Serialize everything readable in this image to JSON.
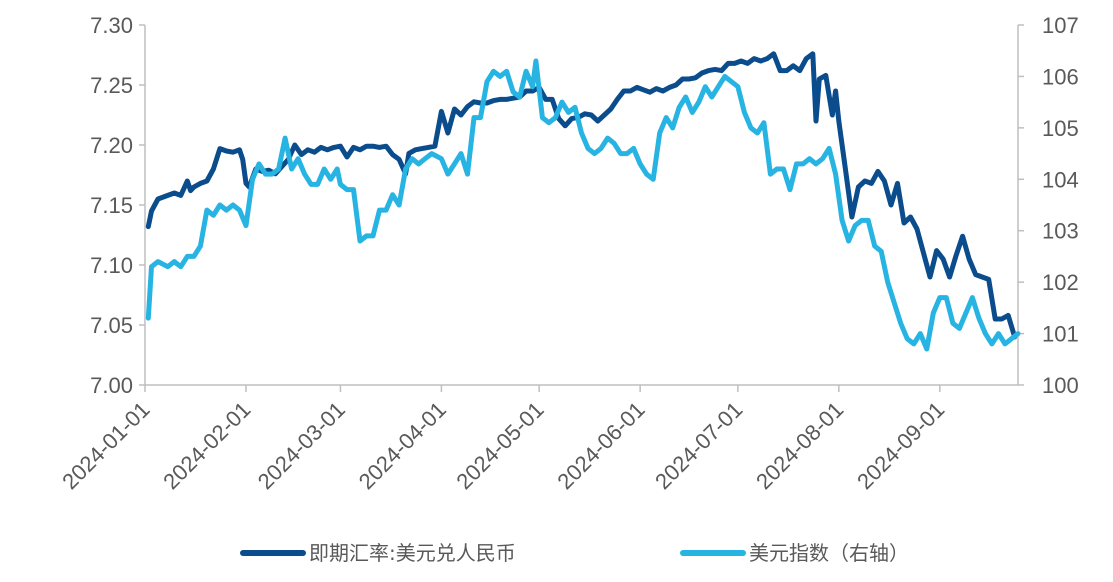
{
  "chart_data": {
    "type": "line",
    "title": "",
    "xlabel": "",
    "ylabel": "",
    "x_ticks": [
      "2024-01-01",
      "2024-02-01",
      "2024-03-01",
      "2024-04-01",
      "2024-05-01",
      "2024-06-01",
      "2024-07-01",
      "2024-08-01",
      "2024-09-01"
    ],
    "x_range": [
      "2024-01-01",
      "2024-09-25"
    ],
    "y_left": {
      "ylim": [
        7.0,
        7.3
      ],
      "ticks": [
        "7.00",
        "7.05",
        "7.10",
        "7.15",
        "7.20",
        "7.25",
        "7.30"
      ]
    },
    "y_right": {
      "ylim": [
        100,
        107
      ],
      "ticks": [
        "100",
        "101",
        "102",
        "103",
        "104",
        "105",
        "106",
        "107"
      ]
    },
    "grid": false,
    "legend_position": "bottom",
    "series": [
      {
        "name": "即期汇率:美元兑人民币",
        "axis": "left",
        "color": "#0B4C8C",
        "points": [
          [
            "2024-01-02",
            7.132
          ],
          [
            "2024-01-03",
            7.145
          ],
          [
            "2024-01-05",
            7.155
          ],
          [
            "2024-01-08",
            7.158
          ],
          [
            "2024-01-10",
            7.16
          ],
          [
            "2024-01-12",
            7.158
          ],
          [
            "2024-01-14",
            7.17
          ],
          [
            "2024-01-15",
            7.162
          ],
          [
            "2024-01-16",
            7.165
          ],
          [
            "2024-01-18",
            7.168
          ],
          [
            "2024-01-20",
            7.17
          ],
          [
            "2024-01-22",
            7.18
          ],
          [
            "2024-01-24",
            7.197
          ],
          [
            "2024-01-26",
            7.195
          ],
          [
            "2024-01-28",
            7.194
          ],
          [
            "2024-01-30",
            7.196
          ],
          [
            "2024-01-31",
            7.188
          ],
          [
            "2024-02-01",
            7.168
          ],
          [
            "2024-02-02",
            7.165
          ],
          [
            "2024-02-04",
            7.18
          ],
          [
            "2024-02-06",
            7.178
          ],
          [
            "2024-02-08",
            7.179
          ],
          [
            "2024-02-10",
            7.176
          ],
          [
            "2024-02-12",
            7.182
          ],
          [
            "2024-02-14",
            7.188
          ],
          [
            "2024-02-16",
            7.2
          ],
          [
            "2024-02-18",
            7.192
          ],
          [
            "2024-02-20",
            7.196
          ],
          [
            "2024-02-22",
            7.194
          ],
          [
            "2024-02-24",
            7.198
          ],
          [
            "2024-02-26",
            7.196
          ],
          [
            "2024-02-28",
            7.198
          ],
          [
            "2024-03-01",
            7.199
          ],
          [
            "2024-03-03",
            7.19
          ],
          [
            "2024-03-05",
            7.198
          ],
          [
            "2024-03-07",
            7.196
          ],
          [
            "2024-03-09",
            7.199
          ],
          [
            "2024-03-11",
            7.199
          ],
          [
            "2024-03-13",
            7.198
          ],
          [
            "2024-03-15",
            7.199
          ],
          [
            "2024-03-17",
            7.192
          ],
          [
            "2024-03-19",
            7.188
          ],
          [
            "2024-03-21",
            7.176
          ],
          [
            "2024-03-22",
            7.193
          ],
          [
            "2024-03-24",
            7.196
          ],
          [
            "2024-03-26",
            7.197
          ],
          [
            "2024-03-28",
            7.198
          ],
          [
            "2024-03-30",
            7.199
          ],
          [
            "2024-04-01",
            7.228
          ],
          [
            "2024-04-03",
            7.21
          ],
          [
            "2024-04-05",
            7.23
          ],
          [
            "2024-04-07",
            7.225
          ],
          [
            "2024-04-09",
            7.232
          ],
          [
            "2024-04-11",
            7.236
          ],
          [
            "2024-04-13",
            7.235
          ],
          [
            "2024-04-15",
            7.235
          ],
          [
            "2024-04-17",
            7.237
          ],
          [
            "2024-04-19",
            7.238
          ],
          [
            "2024-04-21",
            7.238
          ],
          [
            "2024-04-23",
            7.239
          ],
          [
            "2024-04-25",
            7.24
          ],
          [
            "2024-04-27",
            7.245
          ],
          [
            "2024-04-29",
            7.245
          ],
          [
            "2024-05-01",
            7.248
          ],
          [
            "2024-05-03",
            7.238
          ],
          [
            "2024-05-05",
            7.238
          ],
          [
            "2024-05-07",
            7.222
          ],
          [
            "2024-05-09",
            7.216
          ],
          [
            "2024-05-11",
            7.222
          ],
          [
            "2024-05-13",
            7.223
          ],
          [
            "2024-05-15",
            7.226
          ],
          [
            "2024-05-17",
            7.225
          ],
          [
            "2024-05-19",
            7.22
          ],
          [
            "2024-05-21",
            7.225
          ],
          [
            "2024-05-23",
            7.23
          ],
          [
            "2024-05-25",
            7.238
          ],
          [
            "2024-05-27",
            7.245
          ],
          [
            "2024-05-29",
            7.245
          ],
          [
            "2024-05-31",
            7.248
          ],
          [
            "2024-06-02",
            7.246
          ],
          [
            "2024-06-04",
            7.244
          ],
          [
            "2024-06-06",
            7.247
          ],
          [
            "2024-06-08",
            7.245
          ],
          [
            "2024-06-10",
            7.248
          ],
          [
            "2024-06-12",
            7.25
          ],
          [
            "2024-06-14",
            7.255
          ],
          [
            "2024-06-16",
            7.255
          ],
          [
            "2024-06-18",
            7.256
          ],
          [
            "2024-06-20",
            7.26
          ],
          [
            "2024-06-22",
            7.262
          ],
          [
            "2024-06-24",
            7.263
          ],
          [
            "2024-06-26",
            7.262
          ],
          [
            "2024-06-28",
            7.268
          ],
          [
            "2024-06-30",
            7.268
          ],
          [
            "2024-07-02",
            7.27
          ],
          [
            "2024-07-04",
            7.268
          ],
          [
            "2024-07-06",
            7.272
          ],
          [
            "2024-07-08",
            7.27
          ],
          [
            "2024-07-10",
            7.272
          ],
          [
            "2024-07-12",
            7.276
          ],
          [
            "2024-07-14",
            7.262
          ],
          [
            "2024-07-16",
            7.262
          ],
          [
            "2024-07-18",
            7.266
          ],
          [
            "2024-07-20",
            7.262
          ],
          [
            "2024-07-22",
            7.272
          ],
          [
            "2024-07-24",
            7.276
          ],
          [
            "2024-07-25",
            7.22
          ],
          [
            "2024-07-26",
            7.255
          ],
          [
            "2024-07-28",
            7.258
          ],
          [
            "2024-07-30",
            7.225
          ],
          [
            "2024-07-31",
            7.245
          ],
          [
            "2024-08-01",
            7.22
          ],
          [
            "2024-08-03",
            7.18
          ],
          [
            "2024-08-05",
            7.14
          ],
          [
            "2024-08-07",
            7.165
          ],
          [
            "2024-08-09",
            7.17
          ],
          [
            "2024-08-11",
            7.168
          ],
          [
            "2024-08-13",
            7.178
          ],
          [
            "2024-08-15",
            7.17
          ],
          [
            "2024-08-17",
            7.15
          ],
          [
            "2024-08-19",
            7.168
          ],
          [
            "2024-08-21",
            7.135
          ],
          [
            "2024-08-23",
            7.14
          ],
          [
            "2024-08-25",
            7.13
          ],
          [
            "2024-08-27",
            7.11
          ],
          [
            "2024-08-29",
            7.09
          ],
          [
            "2024-08-31",
            7.112
          ],
          [
            "2024-09-02",
            7.105
          ],
          [
            "2024-09-04",
            7.09
          ],
          [
            "2024-09-06",
            7.108
          ],
          [
            "2024-09-08",
            7.124
          ],
          [
            "2024-09-10",
            7.105
          ],
          [
            "2024-09-12",
            7.092
          ],
          [
            "2024-09-14",
            7.09
          ],
          [
            "2024-09-16",
            7.088
          ],
          [
            "2024-09-18",
            7.055
          ],
          [
            "2024-09-20",
            7.055
          ],
          [
            "2024-09-22",
            7.058
          ],
          [
            "2024-09-24",
            7.04
          ]
        ]
      },
      {
        "name": "美元指数（右轴）",
        "axis": "right",
        "color": "#27B4E3",
        "points": [
          [
            "2024-01-02",
            101.3
          ],
          [
            "2024-01-03",
            102.3
          ],
          [
            "2024-01-05",
            102.4
          ],
          [
            "2024-01-08",
            102.3
          ],
          [
            "2024-01-10",
            102.4
          ],
          [
            "2024-01-12",
            102.3
          ],
          [
            "2024-01-14",
            102.5
          ],
          [
            "2024-01-16",
            102.5
          ],
          [
            "2024-01-18",
            102.7
          ],
          [
            "2024-01-20",
            103.4
          ],
          [
            "2024-01-22",
            103.3
          ],
          [
            "2024-01-24",
            103.5
          ],
          [
            "2024-01-26",
            103.4
          ],
          [
            "2024-01-28",
            103.5
          ],
          [
            "2024-01-30",
            103.4
          ],
          [
            "2024-02-01",
            103.1
          ],
          [
            "2024-02-03",
            104.0
          ],
          [
            "2024-02-05",
            104.3
          ],
          [
            "2024-02-07",
            104.1
          ],
          [
            "2024-02-09",
            104.1
          ],
          [
            "2024-02-11",
            104.2
          ],
          [
            "2024-02-13",
            104.8
          ],
          [
            "2024-02-15",
            104.2
          ],
          [
            "2024-02-17",
            104.4
          ],
          [
            "2024-02-19",
            104.1
          ],
          [
            "2024-02-21",
            103.9
          ],
          [
            "2024-02-23",
            103.9
          ],
          [
            "2024-02-25",
            104.2
          ],
          [
            "2024-02-27",
            104.0
          ],
          [
            "2024-02-29",
            104.2
          ],
          [
            "2024-03-01",
            103.9
          ],
          [
            "2024-03-03",
            103.8
          ],
          [
            "2024-03-05",
            103.8
          ],
          [
            "2024-03-07",
            102.8
          ],
          [
            "2024-03-09",
            102.9
          ],
          [
            "2024-03-11",
            102.9
          ],
          [
            "2024-03-13",
            103.4
          ],
          [
            "2024-03-15",
            103.4
          ],
          [
            "2024-03-17",
            103.7
          ],
          [
            "2024-03-19",
            103.5
          ],
          [
            "2024-03-21",
            104.2
          ],
          [
            "2024-03-23",
            104.4
          ],
          [
            "2024-03-25",
            104.3
          ],
          [
            "2024-03-27",
            104.4
          ],
          [
            "2024-03-29",
            104.5
          ],
          [
            "2024-04-01",
            104.4
          ],
          [
            "2024-04-03",
            104.1
          ],
          [
            "2024-04-05",
            104.3
          ],
          [
            "2024-04-07",
            104.5
          ],
          [
            "2024-04-09",
            104.1
          ],
          [
            "2024-04-11",
            105.2
          ],
          [
            "2024-04-13",
            105.2
          ],
          [
            "2024-04-15",
            105.9
          ],
          [
            "2024-04-17",
            106.1
          ],
          [
            "2024-04-19",
            106.0
          ],
          [
            "2024-04-21",
            106.1
          ],
          [
            "2024-04-23",
            105.7
          ],
          [
            "2024-04-25",
            105.6
          ],
          [
            "2024-04-27",
            106.1
          ],
          [
            "2024-04-29",
            105.8
          ],
          [
            "2024-04-30",
            106.3
          ],
          [
            "2024-05-02",
            105.2
          ],
          [
            "2024-05-04",
            105.1
          ],
          [
            "2024-05-06",
            105.2
          ],
          [
            "2024-05-08",
            105.5
          ],
          [
            "2024-05-10",
            105.3
          ],
          [
            "2024-05-12",
            105.4
          ],
          [
            "2024-05-14",
            104.9
          ],
          [
            "2024-05-16",
            104.6
          ],
          [
            "2024-05-18",
            104.5
          ],
          [
            "2024-05-20",
            104.6
          ],
          [
            "2024-05-22",
            104.8
          ],
          [
            "2024-05-24",
            104.7
          ],
          [
            "2024-05-26",
            104.5
          ],
          [
            "2024-05-28",
            104.5
          ],
          [
            "2024-05-30",
            104.6
          ],
          [
            "2024-06-01",
            104.3
          ],
          [
            "2024-06-03",
            104.1
          ],
          [
            "2024-06-05",
            104.0
          ],
          [
            "2024-06-07",
            104.9
          ],
          [
            "2024-06-09",
            105.2
          ],
          [
            "2024-06-11",
            105.0
          ],
          [
            "2024-06-13",
            105.4
          ],
          [
            "2024-06-15",
            105.6
          ],
          [
            "2024-06-17",
            105.3
          ],
          [
            "2024-06-19",
            105.5
          ],
          [
            "2024-06-21",
            105.8
          ],
          [
            "2024-06-23",
            105.6
          ],
          [
            "2024-06-25",
            105.8
          ],
          [
            "2024-06-27",
            106.0
          ],
          [
            "2024-06-29",
            105.9
          ],
          [
            "2024-07-01",
            105.8
          ],
          [
            "2024-07-03",
            105.3
          ],
          [
            "2024-07-05",
            105.0
          ],
          [
            "2024-07-07",
            104.9
          ],
          [
            "2024-07-09",
            105.1
          ],
          [
            "2024-07-11",
            104.1
          ],
          [
            "2024-07-13",
            104.2
          ],
          [
            "2024-07-15",
            104.2
          ],
          [
            "2024-07-17",
            103.8
          ],
          [
            "2024-07-19",
            104.3
          ],
          [
            "2024-07-21",
            104.3
          ],
          [
            "2024-07-23",
            104.4
          ],
          [
            "2024-07-25",
            104.3
          ],
          [
            "2024-07-27",
            104.4
          ],
          [
            "2024-07-29",
            104.6
          ],
          [
            "2024-07-31",
            104.1
          ],
          [
            "2024-08-02",
            103.2
          ],
          [
            "2024-08-04",
            102.8
          ],
          [
            "2024-08-06",
            103.1
          ],
          [
            "2024-08-08",
            103.2
          ],
          [
            "2024-08-10",
            103.2
          ],
          [
            "2024-08-12",
            102.7
          ],
          [
            "2024-08-14",
            102.6
          ],
          [
            "2024-08-16",
            102.0
          ],
          [
            "2024-08-18",
            101.6
          ],
          [
            "2024-08-20",
            101.2
          ],
          [
            "2024-08-22",
            100.9
          ],
          [
            "2024-08-24",
            100.8
          ],
          [
            "2024-08-26",
            101.0
          ],
          [
            "2024-08-28",
            100.7
          ],
          [
            "2024-08-30",
            101.4
          ],
          [
            "2024-09-01",
            101.7
          ],
          [
            "2024-09-03",
            101.7
          ],
          [
            "2024-09-05",
            101.2
          ],
          [
            "2024-09-07",
            101.1
          ],
          [
            "2024-09-09",
            101.4
          ],
          [
            "2024-09-11",
            101.7
          ],
          [
            "2024-09-13",
            101.3
          ],
          [
            "2024-09-15",
            101.0
          ],
          [
            "2024-09-17",
            100.8
          ],
          [
            "2024-09-19",
            101.0
          ],
          [
            "2024-09-21",
            100.8
          ],
          [
            "2024-09-23",
            100.9
          ],
          [
            "2024-09-25",
            101.0
          ]
        ]
      }
    ]
  }
}
